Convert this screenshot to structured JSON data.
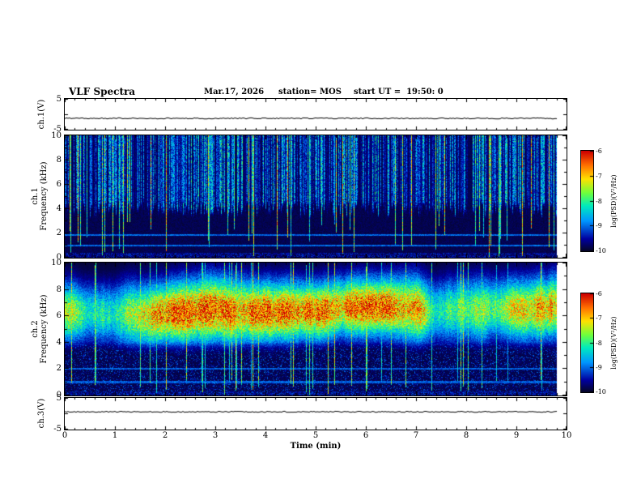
{
  "title": "VLF Spectra",
  "header": {
    "date": "Mar.17, 2026",
    "station": "station= MOS",
    "start_ut": "start UT =  19:50: 0"
  },
  "xaxis": {
    "label": "Time (min)",
    "tick_labels": [
      "0",
      "1",
      "2",
      "3",
      "4",
      "5",
      "6",
      "7",
      "8",
      "9",
      "10"
    ],
    "range_min": [
      0,
      10
    ]
  },
  "panels": {
    "ch1_wave": {
      "label": "ch.1(V)",
      "ytick_labels": [
        "5",
        "-5"
      ],
      "y_range": [
        -5,
        5
      ]
    },
    "ch1_spec": {
      "label_line1": "ch.1",
      "label_line2": "Frequency (kHz)",
      "ytick_labels": [
        "10",
        "8",
        "6",
        "4",
        "2",
        "0"
      ],
      "y_range": [
        0,
        10
      ]
    },
    "ch2_spec": {
      "label_line1": "ch.2",
      "label_line2": "Frequency (kHz)",
      "ytick_labels": [
        "10",
        "8",
        "6",
        "4",
        "2",
        "0"
      ],
      "y_range": [
        0,
        10
      ]
    },
    "ch3_wave": {
      "label": "ch.3(V)",
      "ytick_labels": [
        "5",
        "-5"
      ],
      "y_range": [
        -5,
        5
      ]
    }
  },
  "colorbar": {
    "label": "log(PSD)(V²/Hz)",
    "tick_labels": [
      "-6",
      "-7",
      "-8",
      "-9",
      "-10"
    ],
    "range_log_psd": [
      -10,
      -6
    ]
  },
  "chart_data": [
    {
      "type": "line",
      "panel": "ch1_wave",
      "name": "ch.1 voltage waveform",
      "x_label": "Time (min)",
      "x_range_min": [
        0,
        9.8
      ],
      "y_label": "ch.1(V)",
      "y_range_V": [
        -5,
        5
      ],
      "series": [
        {
          "name": "ch.1",
          "description": "flat quasi-constant trace over the entire record",
          "mean_V": -1.5,
          "peak_to_peak_V": 0.2
        }
      ]
    },
    {
      "type": "heatmap",
      "panel": "ch1_spec",
      "name": "ch.1 VLF spectrogram",
      "x_label": "Time (min)",
      "x_range_min": [
        0,
        9.8
      ],
      "y_label": "Frequency (kHz)",
      "freq_range_kHz": [
        0,
        10
      ],
      "z_label": "log(PSD)(V²/Hz)",
      "z_range_log_psd": [
        -10,
        -6
      ],
      "content": {
        "background_log_psd": -10,
        "impulsive_sferic_striations": {
          "freq_kHz": [
            3.2,
            10
          ],
          "typical_log_psd": [
            -8.5,
            -7.2
          ],
          "strong_streak_log_psd": -6.3,
          "coverage": "dense vertical striations through whole record"
        },
        "full_band_vertical_streaks": {
          "freq_kHz": [
            0,
            10
          ],
          "approx_count": 55
        },
        "horizontal_lines_kHz": [
          0.95,
          1.85
        ],
        "horizontal_line_log_psd": -8.4
      },
      "render": {
        "seed": 11,
        "active_prob": 0.82,
        "upper_cut_kHz": 3.1,
        "streak_prob": 0.1
      }
    },
    {
      "type": "heatmap",
      "panel": "ch2_spec",
      "name": "ch.2 VLF spectrogram",
      "x_label": "Time (min)",
      "x_range_min": [
        0,
        9.8
      ],
      "y_label": "Frequency (kHz)",
      "freq_range_kHz": [
        0,
        10
      ],
      "z_label": "log(PSD)(V²/Hz)",
      "z_range_log_psd": [
        -10,
        -6
      ],
      "content": {
        "background_log_psd": -10,
        "emission_band": {
          "freq_kHz": [
            4,
            9.2
          ],
          "center_kHz": 6.3,
          "typical_log_psd": [
            -7.2,
            -6.3
          ],
          "core_log_psd": -6,
          "structure": "continuous intense band with recurring red cores between 5.5 and 7.5 kHz"
        },
        "low_freq_region": {
          "freq_kHz": [
            0,
            4
          ],
          "log_psd": -9.3,
          "sparse_streaks": true
        },
        "horizontal_lines_kHz": [
          1.0,
          2.0
        ],
        "vertical_streaks_to_DC_count": 35
      },
      "render": {
        "seed": 77,
        "band_center_kHz": 6.3,
        "band_sigma_kHz": 1.5,
        "amp_base": 0.78,
        "streak_prob": 0.07
      }
    },
    {
      "type": "line",
      "panel": "ch3_wave",
      "name": "ch.3 voltage waveform",
      "x_label": "Time (min)",
      "x_range_min": [
        0,
        9.8
      ],
      "y_label": "ch.3(V)",
      "y_range_V": [
        -5,
        5
      ],
      "series": [
        {
          "name": "ch.3",
          "description": "flat quasi-constant trace over the entire record",
          "mean_V": 0.5,
          "peak_to_peak_V": 0.2
        }
      ]
    }
  ]
}
